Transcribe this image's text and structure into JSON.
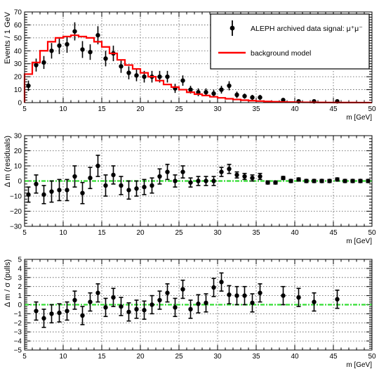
{
  "chart_data": [
    {
      "type": "scatter",
      "id": "top",
      "ylabel": "Events / 1 GeV",
      "xlabel": "m [GeV]",
      "xlim": [
        5,
        50
      ],
      "ylim": [
        0,
        70
      ],
      "xticks": [
        "5",
        "10",
        "15",
        "20",
        "25",
        "30",
        "35",
        "40",
        "45",
        "50"
      ],
      "yticks": [
        "0",
        "10",
        "20",
        "30",
        "40",
        "50",
        "60",
        "70"
      ],
      "legend": {
        "placement": "top-right",
        "entries": [
          "ALEPH archived data signal: μ⁺μ⁻",
          "background model"
        ]
      },
      "series": [
        {
          "kind": "points",
          "x": [
            5.5,
            6.5,
            7.5,
            8.5,
            9.5,
            10.5,
            11.5,
            12.5,
            13.5,
            14.5,
            15.5,
            16.5,
            17.5,
            18.5,
            19.5,
            20.5,
            21.5,
            22.5,
            23.5,
            24.5,
            25.5,
            26.5,
            27.5,
            28.5,
            29.5,
            30.5,
            31.5,
            32.5,
            33.5,
            34.5,
            35.5,
            38.5,
            40.5,
            42.5,
            45.5
          ],
          "y": [
            13,
            29,
            31,
            40,
            44,
            45,
            55,
            41,
            39,
            52,
            34,
            38,
            28,
            23,
            21,
            20,
            20,
            20,
            20,
            11,
            17,
            10,
            8,
            8,
            7,
            10,
            13,
            6,
            5,
            4,
            4,
            2,
            1,
            1,
            1
          ],
          "err": [
            4,
            5,
            5,
            6,
            6.5,
            6.5,
            7,
            6.5,
            6,
            7,
            6,
            6,
            5,
            5,
            4.5,
            4.5,
            4.5,
            4.5,
            4.5,
            3.5,
            4,
            3,
            3,
            3,
            3,
            3,
            3.5,
            2.5,
            2,
            2,
            2,
            1.5,
            1,
            1,
            1
          ]
        },
        {
          "kind": "step",
          "name": "background model",
          "color": "#ff0000",
          "edges": [
            5,
            6,
            7,
            8,
            9,
            10,
            11,
            12,
            13,
            14,
            15,
            16,
            17,
            18,
            19,
            20,
            21,
            22,
            23,
            24,
            25,
            26,
            27,
            28,
            29,
            30,
            31,
            32,
            33,
            34,
            35,
            36,
            37,
            38,
            39,
            40,
            41,
            42,
            43,
            44,
            45,
            46,
            47,
            48,
            49,
            50
          ],
          "y": [
            22,
            31,
            40,
            47,
            50,
            51,
            52,
            51,
            50,
            47,
            43,
            38,
            33,
            29,
            26,
            23,
            20,
            17,
            14,
            12,
            10,
            8,
            6.5,
            5.5,
            4.5,
            3.7,
            3,
            2.4,
            1.9,
            1.5,
            1.2,
            0.9,
            0.7,
            0.5,
            0.4,
            0.3,
            0.25,
            0.2,
            0.15,
            0.1,
            0.08,
            0.06,
            0.05,
            0.04,
            0.03
          ]
        }
      ]
    },
    {
      "type": "scatter",
      "id": "residuals",
      "ylabel": "Δ m (residuals)",
      "xlabel": "m [GeV]",
      "xlim": [
        5,
        50
      ],
      "ylim": [
        -30,
        30
      ],
      "xticks": [
        "5",
        "10",
        "15",
        "20",
        "25",
        "30",
        "35",
        "40",
        "45",
        "50"
      ],
      "yticks": [
        "−30",
        "−20",
        "−10",
        "0",
        "10",
        "20",
        "30"
      ],
      "reference_line": {
        "y": 0,
        "color": "#33dd33"
      },
      "series": [
        {
          "kind": "points",
          "x": [
            5.5,
            6.5,
            7.5,
            8.5,
            9.5,
            10.5,
            11.5,
            12.5,
            13.5,
            14.5,
            15.5,
            16.5,
            17.5,
            18.5,
            19.5,
            20.5,
            21.5,
            22.5,
            23.5,
            24.5,
            25.5,
            26.5,
            27.5,
            28.5,
            29.5,
            30.5,
            31.5,
            32.5,
            33.5,
            34.5,
            35.5,
            36.5,
            37.5,
            38.5,
            39.5,
            40.5,
            41.5,
            42.5,
            43.5,
            44.5,
            45.5,
            46.5,
            47.5,
            48.5,
            49.5
          ],
          "y": [
            -9,
            -2,
            -9,
            -7,
            -6,
            -6,
            3,
            -8,
            2,
            10,
            -3,
            4,
            -3,
            -6,
            -5,
            -4,
            -3,
            3,
            6,
            0,
            6,
            -1,
            0,
            0,
            0,
            6,
            8,
            4,
            3,
            2,
            3,
            -1,
            -1,
            2,
            0,
            1,
            0,
            0,
            0,
            0,
            1,
            0,
            0,
            0,
            0
          ],
          "err": [
            5,
            6,
            6,
            7,
            7,
            7,
            7,
            7,
            7,
            7,
            7,
            6,
            6,
            6,
            5,
            5,
            5,
            5,
            5,
            4,
            4,
            3,
            3,
            3,
            3,
            3,
            3,
            2,
            2,
            2,
            2,
            1,
            1,
            1,
            1,
            1,
            1,
            1,
            1,
            1,
            1,
            1,
            1,
            1,
            1
          ]
        }
      ]
    },
    {
      "type": "scatter",
      "id": "pulls",
      "ylabel": "Δ m / σ (pulls)",
      "xlabel": "m [GeV]",
      "xlim": [
        5,
        50
      ],
      "ylim": [
        -5,
        5
      ],
      "xticks": [
        "5",
        "10",
        "15",
        "20",
        "25",
        "30",
        "35",
        "40",
        "45",
        "50"
      ],
      "yticks": [
        "−5",
        "−4",
        "−3",
        "−2",
        "−1",
        "0",
        "1",
        "2",
        "3",
        "4",
        "5"
      ],
      "reference_line": {
        "y": 0,
        "color": "#33dd33"
      },
      "series": [
        {
          "kind": "points",
          "x": [
            6.5,
            7.5,
            8.5,
            9.5,
            10.5,
            11.5,
            12.5,
            13.5,
            14.5,
            15.5,
            16.5,
            17.5,
            18.5,
            19.5,
            20.5,
            21.5,
            22.5,
            23.5,
            24.5,
            25.5,
            26.5,
            27.5,
            28.5,
            29.5,
            30.5,
            31.5,
            32.5,
            33.5,
            34.5,
            35.5,
            38.5,
            40.5,
            42.5,
            45.5
          ],
          "y": [
            -0.7,
            -1.5,
            -1,
            -0.9,
            -0.7,
            0.5,
            -1.2,
            0.3,
            1.3,
            -0.3,
            0.8,
            -0.2,
            -0.8,
            -0.5,
            -0.6,
            0,
            0.5,
            1.3,
            -0.3,
            1.7,
            -0.5,
            0.1,
            0.2,
            1.9,
            2.5,
            1.1,
            1,
            1,
            0.2,
            1.3,
            1,
            0.8,
            0.3,
            0.6
          ],
          "err": [
            1,
            1,
            1,
            1,
            1,
            1,
            1,
            1,
            1,
            1,
            1,
            1,
            1,
            1,
            1,
            1,
            1,
            1,
            1,
            1,
            1,
            1,
            1,
            1,
            1,
            1,
            1,
            1,
            1,
            1,
            1,
            1,
            1,
            1
          ]
        }
      ]
    }
  ]
}
